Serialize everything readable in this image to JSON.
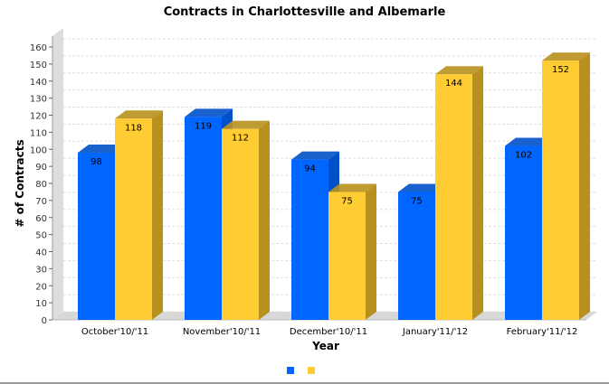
{
  "chart_data": {
    "type": "bar",
    "title": "Contracts in Charlottesville and Albemarle",
    "xlabel": "Year",
    "ylabel": "# of Contracts",
    "ylim": [
      0,
      160
    ],
    "ytick_step": 10,
    "grid": true,
    "legend_placement": "bottom",
    "categories": [
      "October'10/'11",
      "November'10/'11",
      "December'10/'11",
      "January'11/'12",
      "February'11/'12"
    ],
    "series": [
      {
        "name": "",
        "color": "#0066ff",
        "side": "#0050c8",
        "values": [
          98,
          119,
          94,
          75,
          102
        ]
      },
      {
        "name": "",
        "color": "#ffcc33",
        "side": "#b8901e",
        "values": [
          118,
          112,
          75,
          144,
          152
        ]
      }
    ]
  }
}
